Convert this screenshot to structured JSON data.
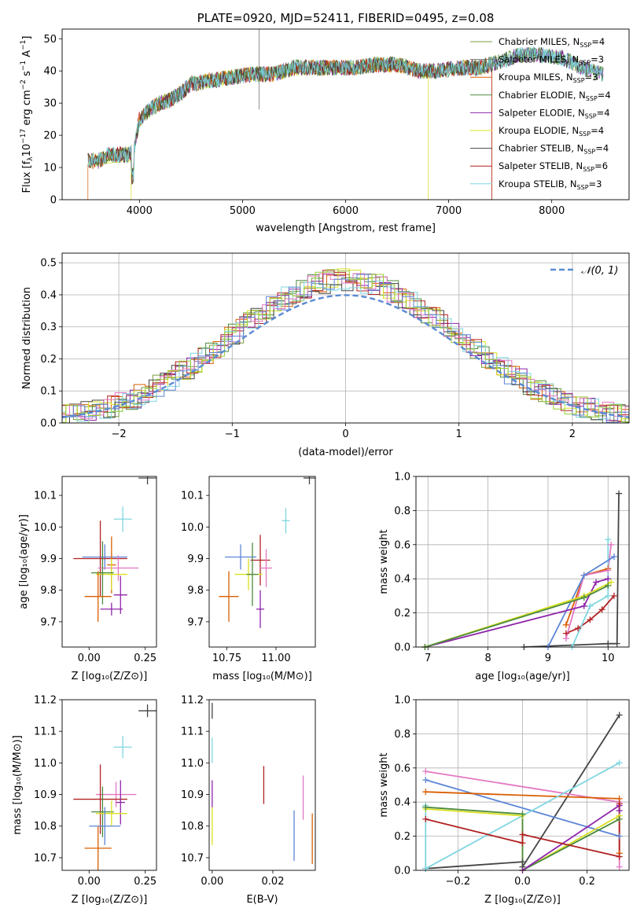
{
  "colors": {
    "Chabrier MILES": "#7a9e3c",
    "Salpeter MILES": "#7a7a7a",
    "Kroupa MILES": "#d95f02",
    "Chabrier ELODIE": "#4b8a3e",
    "Salpeter ELODIE": "#8e24aa",
    "Kroupa ELODIE": "#d9e021",
    "Chabrier STELIB": "#444444",
    "Salpeter STELIB": "#b22222",
    "Kroupa STELIB": "#7fd6e0",
    "extra_pink": "#e377c2",
    "extra_blue": "#5c85d6",
    "extra_green": "#9acd32",
    "gaussian": "#5b8bd4"
  },
  "chart_data": [
    {
      "type": "line",
      "title": "PLATE=0920, MJD=52411, FIBERID=0495, z=0.08",
      "xlabel": "wavelength [Angstrom, rest frame]",
      "ylabel": "Flux [fλ10⁻¹⁷ erg cm⁻² s⁻¹ A⁻¹]",
      "ylabel_parts": {
        "a": "Flux [f",
        "b": "λ",
        "c": "10",
        "d": "−17",
        "e": " erg cm",
        "f": "−2",
        "g": " s",
        "h": "−1",
        "i": " A",
        "j": "−1",
        "k": "]"
      },
      "xlim": [
        3250,
        8750
      ],
      "ylim": [
        0,
        53
      ],
      "xticks": [
        4000,
        5000,
        6000,
        7000,
        8000
      ],
      "yticks": [
        0,
        10,
        20,
        30,
        40,
        50
      ],
      "legend_position": "top-right",
      "series": [
        {
          "name": "Chabrier MILES, N_SSP=4",
          "label": "Chabrier MILES, N",
          "sub": "SSP",
          "eq": "=4",
          "key": "Chabrier MILES"
        },
        {
          "name": "Salpeter MILES, N_SSP=3",
          "label": "Salpeter MILES, N",
          "sub": "SSP",
          "eq": "=3",
          "key": "Salpeter MILES"
        },
        {
          "name": "Kroupa MILES, N_SSP=3",
          "label": "Kroupa MILES, N",
          "sub": "SSP",
          "eq": "=3",
          "key": "Kroupa MILES"
        },
        {
          "name": "Chabrier ELODIE, N_SSP=4",
          "label": "Chabrier ELODIE, N",
          "sub": "SSP",
          "eq": "=4",
          "key": "Chabrier ELODIE"
        },
        {
          "name": "Salpeter ELODIE, N_SSP=4",
          "label": "Salpeter ELODIE, N",
          "sub": "SSP",
          "eq": "=4",
          "key": "Salpeter ELODIE"
        },
        {
          "name": "Kroupa ELODIE, N_SSP=4",
          "label": "Kroupa ELODIE, N",
          "sub": "SSP",
          "eq": "=4",
          "key": "Kroupa ELODIE"
        },
        {
          "name": "Chabrier STELIB, N_SSP=4",
          "label": "Chabrier STELIB, N",
          "sub": "SSP",
          "eq": "=4",
          "key": "Chabrier STELIB"
        },
        {
          "name": "Salpeter STELIB, N_SSP=6",
          "label": "Salpeter STELIB, N",
          "sub": "SSP",
          "eq": "=6",
          "key": "Salpeter STELIB"
        },
        {
          "name": "Kroupa STELIB, N_SSP=3",
          "label": "Kroupa STELIB, N",
          "sub": "SSP",
          "eq": "=3",
          "key": "Kroupa STELIB"
        }
      ],
      "continuum_x": [
        3500,
        3600,
        3700,
        3800,
        3900,
        3950,
        4000,
        4100,
        4200,
        4300,
        4400,
        4500,
        4700,
        4900,
        5100,
        5300,
        5500,
        5700,
        5900,
        6100,
        6300,
        6500,
        6700,
        6900,
        7100,
        7300,
        7500,
        7700,
        7900,
        8100,
        8300,
        8500
      ],
      "continuum_y": [
        12,
        12,
        14,
        14,
        14,
        16,
        25,
        28,
        30,
        31,
        33,
        36,
        37,
        38,
        39,
        39,
        41,
        41,
        41,
        41,
        42,
        42,
        40,
        40,
        41,
        41,
        43,
        45,
        45,
        44,
        41,
        39
      ],
      "spectrum_cutoffs": [
        {
          "key": "Kroupa MILES",
          "xmin": 3500,
          "xmax": 7420
        },
        {
          "key": "Kroupa ELODIE",
          "xmin": 3500,
          "xmax": 6800
        },
        {
          "key": "Chabrier STELIB",
          "xmin": 3500,
          "xmax": 8500
        },
        {
          "key": "Kroupa STELIB",
          "xmin": 3500,
          "xmax": 8500
        }
      ]
    },
    {
      "type": "histogram",
      "xlabel": "(data-model)/error",
      "ylabel": "Normed distribution",
      "xlim": [
        -2.5,
        2.5
      ],
      "ylim": [
        0,
        0.53
      ],
      "xticks": [
        -2,
        -1,
        0,
        1,
        2
      ],
      "yticks": [
        0.0,
        0.1,
        0.2,
        0.3,
        0.4,
        0.5
      ],
      "grid": true,
      "legend_position": "top-right",
      "gaussian_label": "𝒩(0, 1)",
      "bin_width": 0.1
    },
    {
      "type": "scatter",
      "xlabel": "Z [log₁₀(Z/Z⊙)]",
      "ylabel": "age  [log₁₀(age/yr)]",
      "xlim": [
        -0.12,
        0.3
      ],
      "ylim": [
        9.62,
        10.16
      ],
      "xticks": [
        0.0,
        0.25
      ],
      "yticks": [
        9.7,
        9.8,
        9.9,
        10.0,
        10.1
      ],
      "points": [
        {
          "key": "Chabrier STELIB",
          "x": 0.26,
          "y": 10.155,
          "xerr": 0.04,
          "yerr": 0.02
        },
        {
          "key": "Kroupa STELIB",
          "x": 0.15,
          "y": 10.025,
          "xerr": 0.04,
          "yerr": 0.04
        },
        {
          "key": "extra_blue",
          "x": 0.07,
          "y": 9.905,
          "xerr": 0.1,
          "yerr": 0.04
        },
        {
          "key": "Salpeter STELIB",
          "x": 0.05,
          "y": 9.9,
          "xerr": 0.12,
          "yerr": 0.12
        },
        {
          "key": "extra_pink",
          "x": 0.13,
          "y": 9.87,
          "xerr": 0.09,
          "yerr": 0.04
        },
        {
          "key": "Kroupa MILES",
          "x": 0.1,
          "y": 9.88,
          "xerr": 0.02,
          "yerr": 0.09
        },
        {
          "key": "Kroupa ELODIE",
          "x": 0.1,
          "y": 9.85,
          "xerr": 0.07,
          "yerr": 0.05
        },
        {
          "key": "Chabrier ELODIE",
          "x": 0.06,
          "y": 9.855,
          "xerr": 0.05,
          "yerr": 0.1
        },
        {
          "key": "Salpeter ELODIE",
          "x": 0.14,
          "y": 9.785,
          "xerr": 0.03,
          "yerr": 0.06
        },
        {
          "key": "Kroupa MILES",
          "x": 0.04,
          "y": 9.78,
          "xerr": 0.06,
          "yerr": 0.08
        },
        {
          "key": "Salpeter ELODIE",
          "x": 0.1,
          "y": 9.74,
          "xerr": 0.05,
          "yerr": 0.02
        }
      ]
    },
    {
      "type": "scatter",
      "xlabel": "mass [log₁₀(M/M⊙)]",
      "ylabel": "",
      "xlim": [
        10.66,
        11.2
      ],
      "ylim": [
        9.62,
        10.16
      ],
      "xticks": [
        10.75,
        11.0
      ],
      "yticks": [
        9.7,
        9.8,
        9.9,
        10.0,
        10.1
      ],
      "points": [
        {
          "key": "Chabrier STELIB",
          "x": 11.17,
          "y": 10.155,
          "xerr": 0.03,
          "yerr": 0.02
        },
        {
          "key": "Kroupa STELIB",
          "x": 11.05,
          "y": 10.02,
          "xerr": 0.02,
          "yerr": 0.04
        },
        {
          "key": "extra_blue",
          "x": 10.82,
          "y": 9.905,
          "xerr": 0.08,
          "yerr": 0.04
        },
        {
          "key": "Salpeter STELIB",
          "x": 10.92,
          "y": 9.895,
          "xerr": 0.05,
          "yerr": 0.08
        },
        {
          "key": "extra_pink",
          "x": 10.95,
          "y": 9.87,
          "xerr": 0.03,
          "yerr": 0.06
        },
        {
          "key": "Kroupa ELODIE",
          "x": 10.86,
          "y": 9.85,
          "xerr": 0.07,
          "yerr": 0.05
        },
        {
          "key": "Chabrier ELODIE",
          "x": 10.88,
          "y": 9.85,
          "xerr": 0.03,
          "yerr": 0.1
        },
        {
          "key": "Kroupa MILES",
          "x": 10.76,
          "y": 9.78,
          "xerr": 0.05,
          "yerr": 0.08
        },
        {
          "key": "Salpeter ELODIE",
          "x": 10.92,
          "y": 9.74,
          "xerr": 0.02,
          "yerr": 0.06
        }
      ]
    },
    {
      "type": "line",
      "xlabel": "age  [log₁₀(age/yr)]",
      "ylabel": "mass weight",
      "xlim": [
        6.8,
        10.35
      ],
      "ylim": [
        0,
        1
      ],
      "xticks": [
        7,
        8,
        9,
        10
      ],
      "yticks": [
        0.0,
        0.2,
        0.4,
        0.6,
        0.8,
        1.0
      ],
      "grid": true,
      "series": [
        {
          "key": "Chabrier STELIB",
          "x": [
            8.6,
            10.0,
            10.15,
            10.18
          ],
          "y": [
            0.0,
            0.02,
            0.02,
            0.9
          ]
        },
        {
          "key": "Salpeter STELIB",
          "x": [
            9.3,
            9.5,
            9.7,
            9.9,
            10.1
          ],
          "y": [
            0.08,
            0.11,
            0.16,
            0.22,
            0.3
          ]
        },
        {
          "key": "Kroupa MILES",
          "x": [
            9.3,
            9.6,
            10.0
          ],
          "y": [
            0.13,
            0.42,
            0.46
          ]
        },
        {
          "key": "extra_pink",
          "x": [
            9.3,
            9.6,
            10.0,
            10.05
          ],
          "y": [
            0.05,
            0.42,
            0.45,
            0.6
          ]
        },
        {
          "key": "Kroupa STELIB",
          "x": [
            9.4,
            9.7,
            10.0,
            10.0
          ],
          "y": [
            0.0,
            0.24,
            0.3,
            0.63
          ]
        },
        {
          "key": "extra_blue",
          "x": [
            9.0,
            9.6,
            10.1
          ],
          "y": [
            0.0,
            0.42,
            0.53
          ]
        },
        {
          "key": "Salpeter ELODIE",
          "x": [
            6.95,
            9.6,
            9.8,
            10.0
          ],
          "y": [
            0.0,
            0.24,
            0.38,
            0.4
          ]
        },
        {
          "key": "Kroupa ELODIE",
          "x": [
            6.95,
            9.6,
            10.05
          ],
          "y": [
            0.0,
            0.3,
            0.38
          ]
        },
        {
          "key": "Chabrier ELODIE",
          "x": [
            6.95,
            9.6,
            10.0
          ],
          "y": [
            0.0,
            0.29,
            0.36
          ]
        }
      ]
    },
    {
      "type": "scatter",
      "xlabel": "Z [log₁₀(Z/Z⊙)]",
      "ylabel": "mass [log₁₀(M/M⊙)]",
      "xlim": [
        -0.12,
        0.3
      ],
      "ylim": [
        10.66,
        11.2
      ],
      "xticks": [
        0.0,
        0.25
      ],
      "yticks": [
        10.7,
        10.8,
        10.9,
        11.0,
        11.1,
        11.2
      ],
      "points": [
        {
          "key": "Chabrier STELIB",
          "x": 0.26,
          "y": 11.165,
          "xerr": 0.04,
          "yerr": 0.02
        },
        {
          "key": "Kroupa STELIB",
          "x": 0.15,
          "y": 11.05,
          "xerr": 0.04,
          "yerr": 0.035
        },
        {
          "key": "extra_pink",
          "x": 0.12,
          "y": 10.9,
          "xerr": 0.09,
          "yerr": 0.04
        },
        {
          "key": "Salpeter STELIB",
          "x": 0.05,
          "y": 10.885,
          "xerr": 0.12,
          "yerr": 0.11
        },
        {
          "key": "Salpeter ELODIE",
          "x": 0.14,
          "y": 10.875,
          "xerr": 0.02,
          "yerr": 0.07
        },
        {
          "key": "Chabrier ELODIE",
          "x": 0.06,
          "y": 10.845,
          "xerr": 0.05,
          "yerr": 0.08
        },
        {
          "key": "Kroupa ELODIE",
          "x": 0.1,
          "y": 10.84,
          "xerr": 0.07,
          "yerr": 0.04
        },
        {
          "key": "extra_blue",
          "x": 0.07,
          "y": 10.8,
          "xerr": 0.07,
          "yerr": 0.06
        },
        {
          "key": "Kroupa MILES",
          "x": 0.04,
          "y": 10.73,
          "xerr": 0.06,
          "yerr": 0.07
        }
      ]
    },
    {
      "type": "scatter",
      "xlabel": "E(B-V)",
      "ylabel": "",
      "xlim": [
        -0.001,
        0.034
      ],
      "ylim": [
        10.66,
        11.2
      ],
      "xticks": [
        0.0,
        0.02
      ],
      "yticks": [
        10.7,
        10.8,
        10.9,
        11.0,
        11.1,
        11.2
      ],
      "points": [
        {
          "key": "Chabrier STELIB",
          "x": 0.0,
          "y": 11.165,
          "xerr": 0.0,
          "yerr": 0.025
        },
        {
          "key": "Kroupa STELIB",
          "x": 0.0,
          "y": 11.04,
          "xerr": 0.0,
          "yerr": 0.04
        },
        {
          "key": "Salpeter STELIB",
          "x": 0.017,
          "y": 10.93,
          "xerr": 0.0,
          "yerr": 0.06
        },
        {
          "key": "extra_pink",
          "x": 0.03,
          "y": 10.89,
          "xerr": 0.0,
          "yerr": 0.07
        },
        {
          "key": "Salpeter ELODIE",
          "x": 0.0,
          "y": 10.9,
          "xerr": 0.0,
          "yerr": 0.045
        },
        {
          "key": "Kroupa ELODIE",
          "x": 0.0,
          "y": 10.8,
          "xerr": 0.0,
          "yerr": 0.06
        },
        {
          "key": "extra_blue",
          "x": 0.027,
          "y": 10.77,
          "xerr": 0.0,
          "yerr": 0.08
        },
        {
          "key": "Kroupa MILES",
          "x": 0.033,
          "y": 10.76,
          "xerr": 0.0,
          "yerr": 0.08
        }
      ]
    },
    {
      "type": "line",
      "xlabel": "Z [log₁₀(Z/Z⊙)]",
      "ylabel": "mass weight",
      "xlim": [
        -0.33,
        0.33
      ],
      "ylim": [
        0,
        1
      ],
      "xticks": [
        -0.2,
        0.0,
        0.2
      ],
      "yticks": [
        0.0,
        0.2,
        0.4,
        0.6,
        0.8,
        1.0
      ],
      "grid": true,
      "series": [
        {
          "key": "Chabrier STELIB",
          "x": [
            -0.3,
            0.0,
            0.0,
            0.3
          ],
          "y": [
            0.01,
            0.05,
            0.02,
            0.91
          ]
        },
        {
          "key": "extra_pink",
          "x": [
            -0.3,
            0.3,
            0.3
          ],
          "y": [
            0.58,
            0.4,
            0.02
          ]
        },
        {
          "key": "extra_blue",
          "x": [
            -0.3,
            0.3
          ],
          "y": [
            0.53,
            0.2
          ]
        },
        {
          "key": "Kroupa MILES",
          "x": [
            -0.3,
            0.3,
            0.3
          ],
          "y": [
            0.46,
            0.42,
            0.1
          ]
        },
        {
          "key": "Kroupa STELIB",
          "x": [
            -0.3,
            -0.3,
            0.3
          ],
          "y": [
            0.38,
            0.01,
            0.63
          ]
        },
        {
          "key": "Kroupa ELODIE",
          "x": [
            -0.3,
            0.0,
            0.0,
            0.3
          ],
          "y": [
            0.36,
            0.32,
            0.0,
            0.32
          ]
        },
        {
          "key": "Chabrier ELODIE",
          "x": [
            -0.3,
            0.0,
            0.0,
            0.3
          ],
          "y": [
            0.37,
            0.33,
            0.0,
            0.3
          ]
        },
        {
          "key": "Salpeter ELODIE",
          "x": [
            0.0,
            0.3,
            0.3
          ],
          "y": [
            0.0,
            0.38,
            0.35
          ]
        },
        {
          "key": "Salpeter STELIB",
          "x": [
            -0.3,
            0.0,
            0.0,
            0.3,
            0.3
          ],
          "y": [
            0.3,
            0.16,
            0.21,
            0.08,
            0.39
          ]
        }
      ]
    }
  ]
}
